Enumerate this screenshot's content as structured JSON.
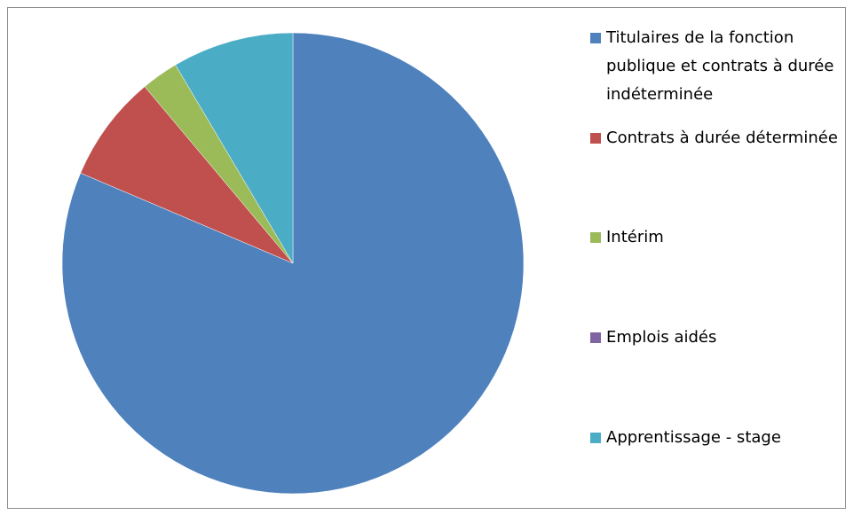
{
  "chart_data": {
    "type": "pie",
    "categories": [
      "Titulaires de la fonction publique et contrats à durée indéterminée",
      "Contrats à durée déterminée",
      "Intérim",
      "Emplois aidés",
      "Apprentissage - stage"
    ],
    "values": [
      81.4,
      7.5,
      2.6,
      0,
      8.5
    ],
    "colors": [
      "#4f81bd",
      "#c0504d",
      "#9bbb59",
      "#8064a2",
      "#4bacc6"
    ],
    "legend": "right"
  }
}
